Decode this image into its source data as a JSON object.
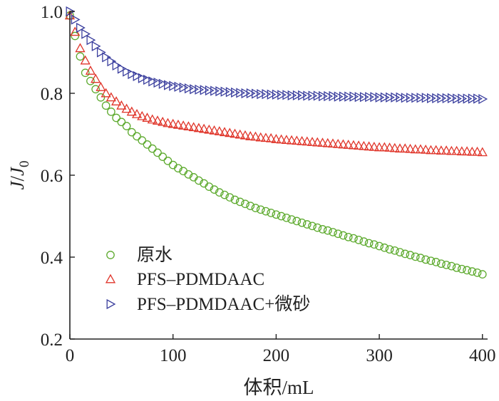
{
  "chart_data": {
    "type": "scatter",
    "xlabel": "体积/mL",
    "ylabel": {
      "base": "J",
      "sep": "/",
      "base2": "J",
      "sub": "0"
    },
    "xlim": [
      0,
      405
    ],
    "ylim": [
      0.2,
      1.0
    ],
    "xticks": [
      "0",
      "100",
      "200",
      "300",
      "400"
    ],
    "yticks": [
      "0.2",
      "0.4",
      "0.6",
      "0.8",
      "1.0"
    ],
    "grid": false,
    "legend_position": "bottom-left",
    "series": [
      {
        "name": "原水",
        "marker": "circle",
        "color": "#5daa2e",
        "x": [
          0,
          5,
          10,
          15,
          20,
          25,
          30,
          35,
          40,
          45,
          50,
          55,
          60,
          65,
          70,
          75,
          80,
          85,
          90,
          95,
          100,
          105,
          110,
          115,
          120,
          125,
          130,
          135,
          140,
          145,
          150,
          155,
          160,
          165,
          170,
          175,
          180,
          185,
          190,
          195,
          200,
          205,
          210,
          215,
          220,
          225,
          230,
          235,
          240,
          245,
          250,
          255,
          260,
          265,
          270,
          275,
          280,
          285,
          290,
          295,
          300,
          305,
          310,
          315,
          320,
          325,
          330,
          335,
          340,
          345,
          350,
          355,
          360,
          365,
          370,
          375,
          380,
          385,
          390,
          395,
          400
        ],
        "y": [
          0.99,
          0.94,
          0.89,
          0.85,
          0.83,
          0.81,
          0.79,
          0.77,
          0.755,
          0.74,
          0.73,
          0.72,
          0.705,
          0.695,
          0.685,
          0.675,
          0.665,
          0.655,
          0.645,
          0.635,
          0.625,
          0.617,
          0.61,
          0.602,
          0.595,
          0.587,
          0.58,
          0.572,
          0.565,
          0.558,
          0.552,
          0.546,
          0.54,
          0.535,
          0.53,
          0.525,
          0.52,
          0.516,
          0.512,
          0.508,
          0.504,
          0.5,
          0.496,
          0.492,
          0.488,
          0.484,
          0.48,
          0.476,
          0.472,
          0.468,
          0.465,
          0.461,
          0.457,
          0.453,
          0.449,
          0.446,
          0.442,
          0.438,
          0.434,
          0.431,
          0.427,
          0.423,
          0.419,
          0.416,
          0.412,
          0.408,
          0.405,
          0.401,
          0.398,
          0.394,
          0.391,
          0.388,
          0.384,
          0.381,
          0.378,
          0.374,
          0.371,
          0.368,
          0.365,
          0.362,
          0.358
        ]
      },
      {
        "name": "PFS–PDMDAAC",
        "marker": "triangle-up",
        "color": "#e0362b",
        "x": [
          0,
          5,
          10,
          15,
          20,
          25,
          30,
          35,
          40,
          45,
          50,
          55,
          60,
          65,
          70,
          75,
          80,
          85,
          90,
          95,
          100,
          105,
          110,
          115,
          120,
          125,
          130,
          135,
          140,
          145,
          150,
          155,
          160,
          165,
          170,
          175,
          180,
          185,
          190,
          195,
          200,
          205,
          210,
          215,
          220,
          225,
          230,
          235,
          240,
          245,
          250,
          255,
          260,
          265,
          270,
          275,
          280,
          285,
          290,
          295,
          300,
          305,
          310,
          315,
          320,
          325,
          330,
          335,
          340,
          345,
          350,
          355,
          360,
          365,
          370,
          375,
          380,
          385,
          390,
          395,
          400
        ],
        "y": [
          0.99,
          0.95,
          0.91,
          0.88,
          0.855,
          0.835,
          0.815,
          0.8,
          0.79,
          0.78,
          0.77,
          0.762,
          0.755,
          0.749,
          0.744,
          0.74,
          0.736,
          0.733,
          0.73,
          0.727,
          0.725,
          0.723,
          0.721,
          0.719,
          0.717,
          0.715,
          0.713,
          0.711,
          0.709,
          0.707,
          0.705,
          0.703,
          0.701,
          0.699,
          0.697,
          0.695,
          0.694,
          0.692,
          0.691,
          0.69,
          0.688,
          0.687,
          0.686,
          0.685,
          0.684,
          0.683,
          0.682,
          0.681,
          0.68,
          0.679,
          0.678,
          0.677,
          0.676,
          0.675,
          0.674,
          0.673,
          0.672,
          0.671,
          0.67,
          0.669,
          0.668,
          0.668,
          0.667,
          0.666,
          0.665,
          0.665,
          0.664,
          0.663,
          0.663,
          0.662,
          0.661,
          0.661,
          0.66,
          0.66,
          0.659,
          0.659,
          0.658,
          0.658,
          0.657,
          0.657,
          0.656
        ]
      },
      {
        "name": "PFS–PDMDAAC+微砂",
        "marker": "triangle-right",
        "color": "#3b3f9e",
        "x": [
          0,
          5,
          10,
          15,
          20,
          25,
          30,
          35,
          40,
          45,
          50,
          55,
          60,
          65,
          70,
          75,
          80,
          85,
          90,
          95,
          100,
          105,
          110,
          115,
          120,
          125,
          130,
          135,
          140,
          145,
          150,
          155,
          160,
          165,
          170,
          175,
          180,
          185,
          190,
          195,
          200,
          205,
          210,
          215,
          220,
          225,
          230,
          235,
          240,
          245,
          250,
          255,
          260,
          265,
          270,
          275,
          280,
          285,
          290,
          295,
          300,
          305,
          310,
          315,
          320,
          325,
          330,
          335,
          340,
          345,
          350,
          355,
          360,
          365,
          370,
          375,
          380,
          385,
          390,
          395,
          400
        ],
        "y": [
          1.0,
          0.98,
          0.96,
          0.945,
          0.93,
          0.915,
          0.9,
          0.888,
          0.878,
          0.868,
          0.86,
          0.853,
          0.847,
          0.842,
          0.837,
          0.833,
          0.829,
          0.826,
          0.823,
          0.82,
          0.818,
          0.816,
          0.814,
          0.812,
          0.81,
          0.809,
          0.808,
          0.807,
          0.806,
          0.805,
          0.804,
          0.803,
          0.802,
          0.801,
          0.8,
          0.8,
          0.799,
          0.798,
          0.798,
          0.797,
          0.797,
          0.796,
          0.796,
          0.795,
          0.795,
          0.795,
          0.794,
          0.794,
          0.794,
          0.793,
          0.793,
          0.793,
          0.792,
          0.792,
          0.792,
          0.792,
          0.791,
          0.791,
          0.791,
          0.791,
          0.79,
          0.79,
          0.79,
          0.79,
          0.79,
          0.789,
          0.789,
          0.789,
          0.789,
          0.789,
          0.788,
          0.788,
          0.788,
          0.788,
          0.788,
          0.787,
          0.787,
          0.787,
          0.787,
          0.787,
          0.786
        ]
      }
    ]
  }
}
